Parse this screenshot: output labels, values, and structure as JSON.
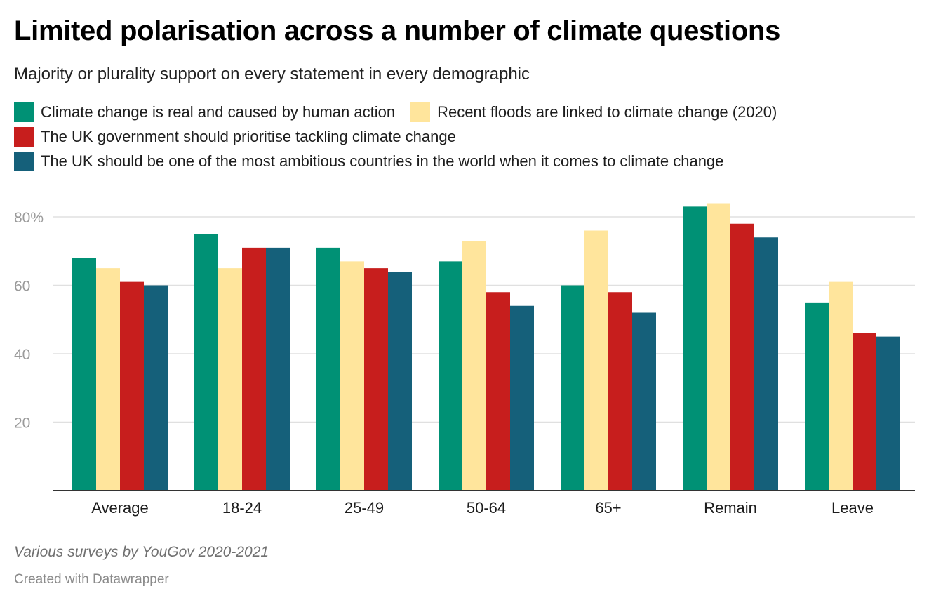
{
  "title": "Limited polarisation across a number of climate questions",
  "subtitle": "Majority or plurality support on every statement in every demographic",
  "source": "Various surveys by YouGov 2020-2021",
  "credit": "Created with Datawrapper",
  "colors": {
    "grid": "#e0e0e0",
    "axis": "#333333",
    "tick_text": "#9a9a9a",
    "category_text": "#1d1d1d"
  },
  "chart_data": {
    "type": "bar",
    "categories": [
      "Average",
      "18-24",
      "25-49",
      "50-64",
      "65+",
      "Remain",
      "Leave"
    ],
    "y_ticks": [
      {
        "value": 80,
        "label": "80%"
      },
      {
        "value": 60,
        "label": "60"
      },
      {
        "value": 40,
        "label": "40"
      },
      {
        "value": 20,
        "label": "20"
      }
    ],
    "ylim": [
      0,
      85
    ],
    "grid": true,
    "legend_position": "top",
    "series": [
      {
        "name": "Climate change is real and caused by human action",
        "color": "#009175",
        "values": [
          68,
          75,
          71,
          67,
          60,
          83,
          55
        ]
      },
      {
        "name": "Recent floods are linked to climate change (2020)",
        "color": "#ffe59c",
        "values": [
          65,
          65,
          67,
          73,
          76,
          84,
          61
        ]
      },
      {
        "name": "The UK government should prioritise tackling climate change",
        "color": "#c71e1d",
        "values": [
          61,
          71,
          65,
          58,
          58,
          78,
          46
        ]
      },
      {
        "name": "The UK should be one of the most ambitious countries in the world when it comes to climate change",
        "color": "#15607a",
        "values": [
          60,
          71,
          64,
          54,
          52,
          74,
          45
        ]
      }
    ]
  }
}
